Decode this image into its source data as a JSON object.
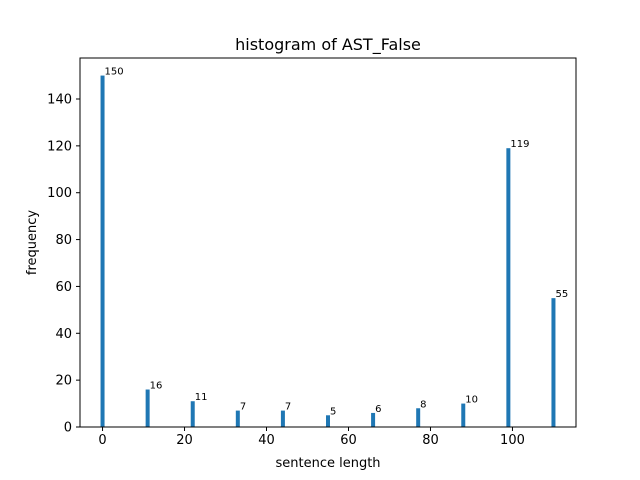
{
  "chart_data": {
    "type": "bar",
    "title": "histogram of AST_False",
    "xlabel": "sentence length",
    "ylabel": "frequency",
    "x": [
      0,
      11,
      22,
      33,
      44,
      55,
      66,
      77,
      88,
      99,
      110
    ],
    "values": [
      150,
      16,
      11,
      7,
      7,
      5,
      6,
      8,
      10,
      119,
      55
    ],
    "data_labels": [
      "150",
      "16",
      "11",
      "7",
      "7",
      "5",
      "6",
      "8",
      "10",
      "119",
      "55"
    ],
    "xlim": [
      -5.5,
      115.5
    ],
    "ylim": [
      0,
      157.5
    ],
    "xticks": [
      0,
      20,
      40,
      60,
      80,
      100
    ],
    "xtick_labels": [
      "0",
      "20",
      "40",
      "60",
      "80",
      "100"
    ],
    "yticks": [
      0,
      20,
      40,
      60,
      80,
      100,
      120,
      140
    ],
    "ytick_labels": [
      "0",
      "20",
      "40",
      "60",
      "80",
      "100",
      "120",
      "140"
    ],
    "bar_color": "#1f77b4",
    "grid": false,
    "legend": "none"
  }
}
